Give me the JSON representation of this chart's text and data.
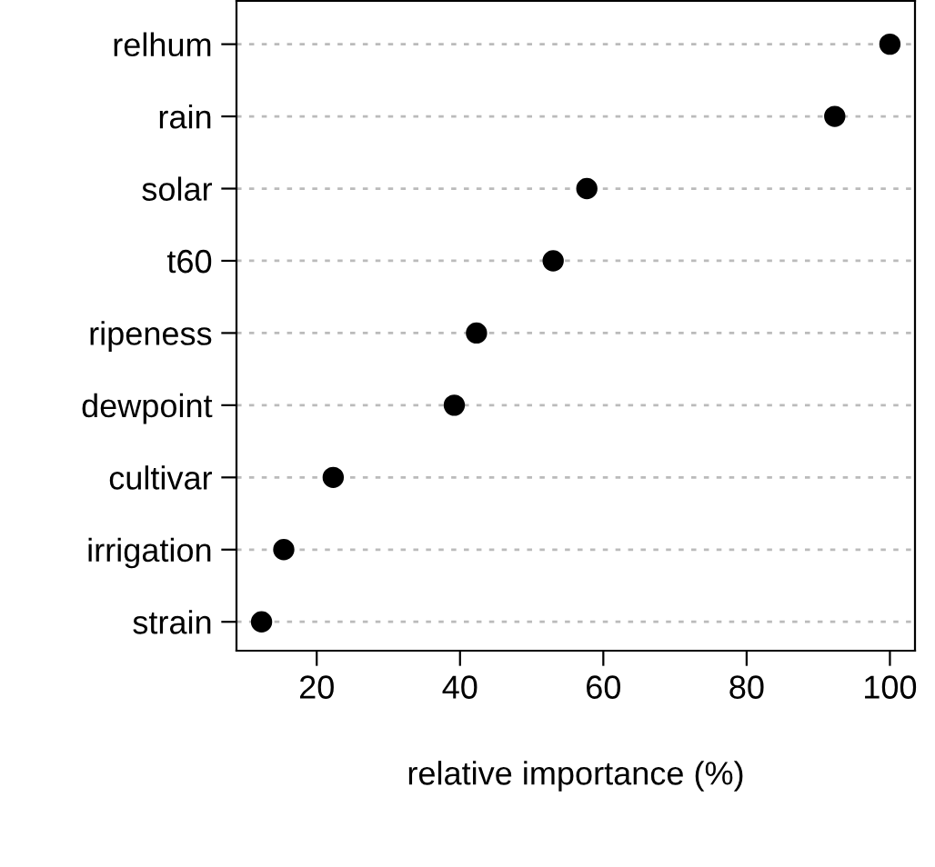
{
  "chart_data": {
    "type": "scatter",
    "orientation": "horizontal",
    "xlabel": "relative importance (%)",
    "categories": [
      "relhum",
      "rain",
      "solar",
      "t60",
      "ripeness",
      "dewpoint",
      "cultivar",
      "irrigation",
      "strain"
    ],
    "values": [
      100,
      92.3,
      57.7,
      53,
      42.3,
      39.2,
      22.3,
      15.4,
      12.3
    ],
    "color": "#000000",
    "marker": "circle",
    "xlim": [
      8.8,
      103.5
    ],
    "xticks": [
      20,
      40,
      60,
      80,
      100
    ],
    "grid": "y"
  }
}
